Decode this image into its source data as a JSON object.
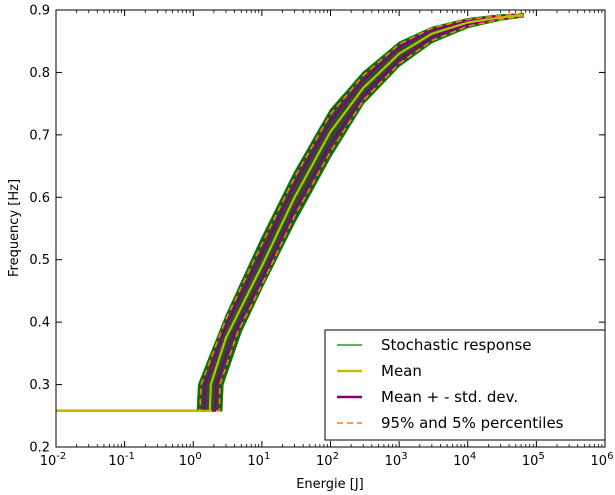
{
  "chart_data": {
    "type": "line",
    "xlabel": "Energie [J]",
    "ylabel": "Frequency [Hz]",
    "xscale": "log",
    "xlim": [
      0.01,
      1000000
    ],
    "ylim": [
      0.2,
      0.9
    ],
    "x_ticks": [
      {
        "value": 0.01,
        "base": "10",
        "exp": "-2"
      },
      {
        "value": 0.1,
        "base": "10",
        "exp": "-1"
      },
      {
        "value": 1,
        "base": "10",
        "exp": "0"
      },
      {
        "value": 10,
        "base": "10",
        "exp": "1"
      },
      {
        "value": 100,
        "base": "10",
        "exp": "2"
      },
      {
        "value": 1000,
        "base": "10",
        "exp": "3"
      },
      {
        "value": 10000,
        "base": "10",
        "exp": "4"
      },
      {
        "value": 100000,
        "base": "10",
        "exp": "5"
      },
      {
        "value": 1000000,
        "base": "10",
        "exp": "6"
      }
    ],
    "y_ticks": [
      "0.2",
      "0.3",
      "0.4",
      "0.5",
      "0.6",
      "0.7",
      "0.8",
      "0.9"
    ],
    "grid": false,
    "legend_position": "lower-right",
    "series": [
      {
        "name": "Stochastic response",
        "color": "#008000",
        "style": "solid-band",
        "band_lower": [
          [
            0.01,
            0.258
          ],
          [
            2.6,
            0.258
          ],
          [
            2.7,
            0.3
          ],
          [
            5,
            0.385
          ],
          [
            10,
            0.455
          ],
          [
            30,
            0.56
          ],
          [
            100,
            0.665
          ],
          [
            300,
            0.75
          ],
          [
            1000,
            0.81
          ],
          [
            3000,
            0.848
          ],
          [
            10000,
            0.872
          ],
          [
            30000,
            0.884
          ],
          [
            65000,
            0.889
          ]
        ],
        "band_upper": [
          [
            0.01,
            0.258
          ],
          [
            1.15,
            0.258
          ],
          [
            1.2,
            0.3
          ],
          [
            3,
            0.41
          ],
          [
            10,
            0.535
          ],
          [
            30,
            0.64
          ],
          [
            100,
            0.74
          ],
          [
            300,
            0.8
          ],
          [
            1000,
            0.848
          ],
          [
            3000,
            0.872
          ],
          [
            10000,
            0.886
          ],
          [
            30000,
            0.892
          ],
          [
            65000,
            0.894
          ]
        ]
      },
      {
        "name": "Mean",
        "color": "#bfbf00",
        "style": "solid",
        "points": [
          [
            0.01,
            0.258
          ],
          [
            1.75,
            0.258
          ],
          [
            1.8,
            0.3
          ],
          [
            3,
            0.375
          ],
          [
            10,
            0.49
          ],
          [
            30,
            0.6
          ],
          [
            100,
            0.705
          ],
          [
            300,
            0.775
          ],
          [
            1000,
            0.83
          ],
          [
            3000,
            0.862
          ],
          [
            10000,
            0.88
          ],
          [
            30000,
            0.888
          ],
          [
            65000,
            0.892
          ]
        ]
      },
      {
        "name": "Mean + - std. dev.",
        "color": "#800080",
        "style": "solid",
        "curves": [
          [
            [
              0.01,
              0.258
            ],
            [
              2.1,
              0.258
            ],
            [
              2.15,
              0.3
            ],
            [
              4,
              0.385
            ],
            [
              10,
              0.47
            ],
            [
              30,
              0.58
            ],
            [
              100,
              0.685
            ],
            [
              300,
              0.763
            ],
            [
              1000,
              0.82
            ],
            [
              3000,
              0.856
            ],
            [
              10000,
              0.877
            ],
            [
              30000,
              0.886
            ],
            [
              65000,
              0.891
            ]
          ],
          [
            [
              0.01,
              0.258
            ],
            [
              1.45,
              0.258
            ],
            [
              1.5,
              0.3
            ],
            [
              3,
              0.395
            ],
            [
              10,
              0.51
            ],
            [
              30,
              0.62
            ],
            [
              100,
              0.722
            ],
            [
              300,
              0.788
            ],
            [
              1000,
              0.84
            ],
            [
              3000,
              0.868
            ],
            [
              10000,
              0.883
            ],
            [
              30000,
              0.89
            ],
            [
              65000,
              0.893
            ]
          ]
        ]
      },
      {
        "name": "95% and 5% percentiles",
        "color": "#ff7f0e",
        "style": "dashed",
        "curves": [
          [
            [
              0.01,
              0.258
            ],
            [
              2.4,
              0.258
            ],
            [
              2.45,
              0.3
            ],
            [
              4.5,
              0.385
            ],
            [
              10,
              0.46
            ],
            [
              30,
              0.57
            ],
            [
              100,
              0.673
            ],
            [
              300,
              0.755
            ],
            [
              1000,
              0.814
            ],
            [
              3000,
              0.851
            ],
            [
              10000,
              0.874
            ],
            [
              30000,
              0.885
            ],
            [
              65000,
              0.89
            ]
          ],
          [
            [
              0.01,
              0.258
            ],
            [
              1.25,
              0.258
            ],
            [
              1.3,
              0.3
            ],
            [
              3,
              0.405
            ],
            [
              10,
              0.525
            ],
            [
              30,
              0.632
            ],
            [
              100,
              0.733
            ],
            [
              300,
              0.795
            ],
            [
              1000,
              0.845
            ],
            [
              3000,
              0.871
            ],
            [
              10000,
              0.885
            ],
            [
              30000,
              0.891
            ],
            [
              65000,
              0.894
            ]
          ]
        ]
      }
    ]
  }
}
